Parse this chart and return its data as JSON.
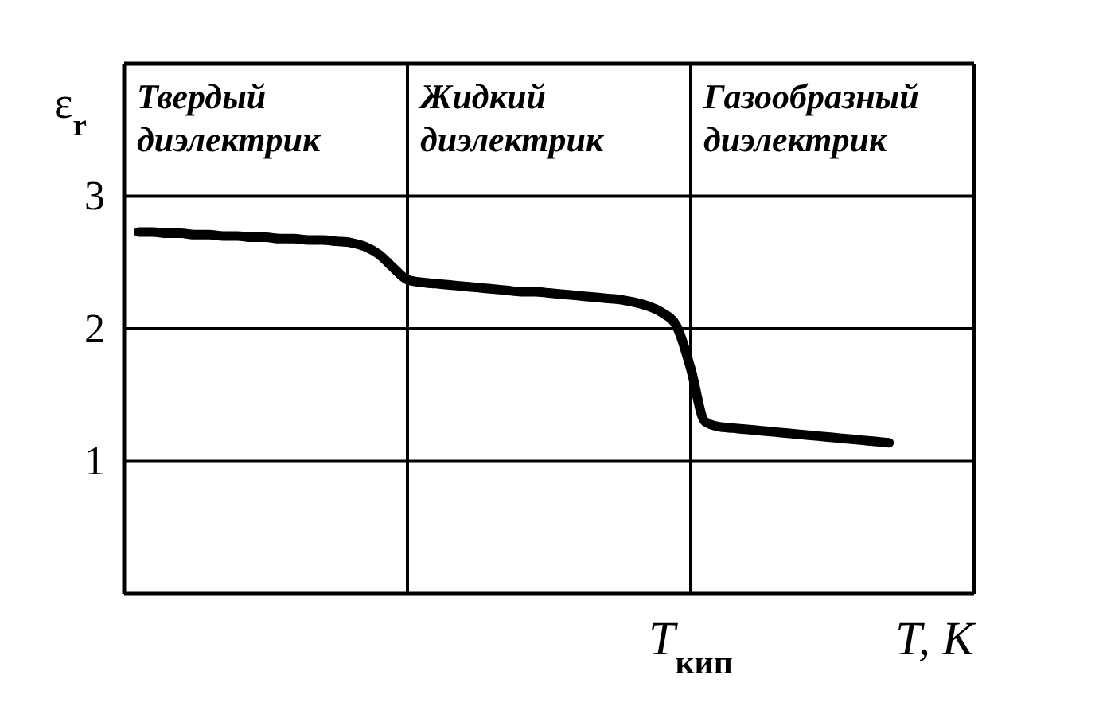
{
  "chart_data": {
    "type": "line",
    "xlabel": "T, K",
    "ylabel": "ε$_{r}$",
    "annotations": [
      "Твердый диэлектрик",
      "Жидкий диэлектрик",
      "Газообразный диэлектрик",
      "T$_{кип}$"
    ],
    "categories": [
      null,
      null,
      null,
      null,
      null,
      null,
      null,
      null,
      null,
      null,
      null,
      null,
      null,
      null,
      null,
      null,
      null,
      null,
      null,
      null,
      null,
      null,
      null,
      null,
      null,
      null,
      null,
      null,
      null,
      null,
      null,
      null,
      null,
      null,
      null,
      null,
      null,
      null,
      null,
      null,
      null,
      null,
      null,
      null,
      null,
      null,
      null,
      null,
      null,
      null,
      null,
      null,
      null,
      null,
      null,
      null,
      null,
      null,
      null,
      null,
      null
    ],
    "series": [
      {
        "color": "#000000",
        "values": [
          null,
          2.73,
          2.73,
          2.72,
          2.72,
          2.71,
          2.71,
          2.7,
          2.7,
          2.69,
          2.69,
          2.68,
          2.68,
          2.67,
          2.67,
          2.66,
          2.65,
          2.62,
          2.56,
          2.46,
          2.37,
          2.35,
          2.34,
          2.33,
          2.32,
          2.31,
          2.3,
          2.29,
          2.28,
          2.28,
          2.27,
          2.26,
          2.25,
          2.24,
          2.23,
          2.22,
          2.2,
          2.17,
          2.12,
          2.02,
          1.7,
          1.3,
          1.26,
          1.25,
          1.24,
          1.23,
          1.22,
          1.21,
          1.2,
          1.19,
          1.18,
          1.17,
          1.16,
          1.15,
          1.14,
          null,
          null,
          null,
          null,
          null,
          null
        ]
      }
    ],
    "ylim": [
      0,
      4
    ],
    "yticks": [
      1,
      2,
      3
    ],
    "grid": "y",
    "marker": "none",
    "line_style": "solid"
  }
}
